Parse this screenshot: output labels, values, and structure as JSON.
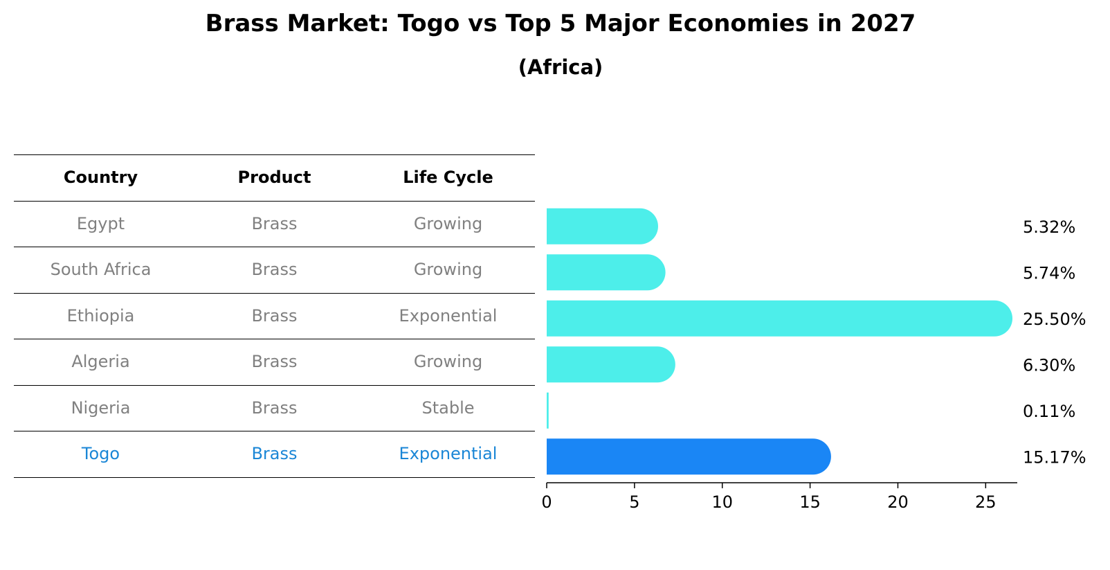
{
  "chart_data": {
    "type": "bar",
    "orientation": "horizontal",
    "title": "Brass Market: Togo vs Top 5 Major Economies in 2027",
    "subtitle": "(Africa)",
    "table": {
      "columns": [
        "Country",
        "Product",
        "Life Cycle"
      ],
      "rows": [
        {
          "country": "Egypt",
          "product": "Brass",
          "life_cycle": "Growing"
        },
        {
          "country": "South Africa",
          "product": "Brass",
          "life_cycle": "Growing"
        },
        {
          "country": "Ethiopia",
          "product": "Brass",
          "life_cycle": "Exponential"
        },
        {
          "country": "Algeria",
          "product": "Brass",
          "life_cycle": "Growing"
        },
        {
          "country": "Nigeria",
          "product": "Brass",
          "life_cycle": "Stable"
        },
        {
          "country": "Togo",
          "product": "Brass",
          "life_cycle": "Exponential"
        }
      ]
    },
    "categories": [
      "Egypt",
      "South Africa",
      "Ethiopia",
      "Algeria",
      "Nigeria",
      "Togo"
    ],
    "values": [
      5.32,
      5.74,
      25.5,
      6.3,
      0.11,
      15.17
    ],
    "value_labels": [
      "5.32%",
      "5.74%",
      "25.50%",
      "6.30%",
      "0.11%",
      "15.17%"
    ],
    "highlight_category": "Togo",
    "xlim": [
      0,
      26.8
    ],
    "xticks": [
      0,
      5,
      10,
      15,
      20,
      25
    ],
    "grid": false,
    "colors": {
      "bar": "#4deeea",
      "highlight_bar": "#1a86f5",
      "highlight_text": "#1a86d6",
      "muted_text": "#808080"
    }
  }
}
